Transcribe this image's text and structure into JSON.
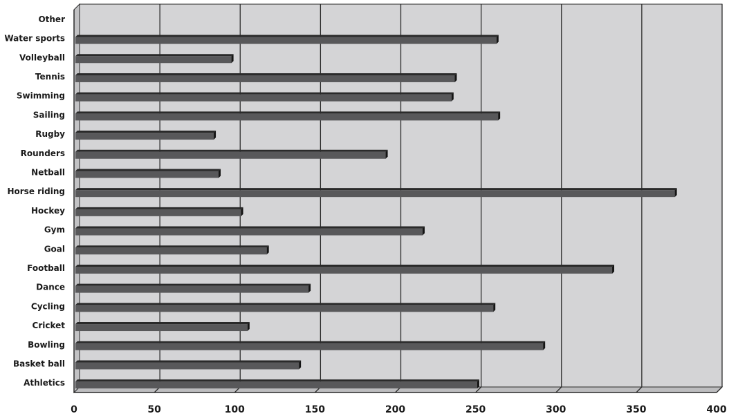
{
  "chart_data": {
    "type": "bar",
    "orientation": "horizontal",
    "categories": [
      "Other",
      "Water sports",
      "Volleyball",
      "Tennis",
      "Swimming",
      "Sailing",
      "Rugby",
      "Rounders",
      "Netball",
      "Horse riding",
      "Hockey",
      "Gym",
      "Goal",
      "Football",
      "Dance",
      "Cycling",
      "Cricket",
      "Bowling",
      "Basket ball",
      "Athletics"
    ],
    "values": [
      0,
      263,
      98,
      237,
      235,
      264,
      87,
      194,
      90,
      374,
      104,
      217,
      120,
      335,
      146,
      261,
      108,
      292,
      140,
      251
    ],
    "xticks": [
      "0",
      "50",
      "100",
      "150",
      "200",
      "250",
      "300",
      "350",
      "400"
    ],
    "xlim": [
      0,
      400
    ],
    "grid": true,
    "title": "",
    "xlabel": "",
    "ylabel": "",
    "colors": {
      "plot_back": "#d4d4d6",
      "plot_floor": "#bdbdbf",
      "plot_side": "#c2c2c4",
      "bar_front": "#58585a",
      "bar_top": "#2a2a2a",
      "bar_end": "#141414",
      "grid": "#2b2b2b"
    }
  }
}
